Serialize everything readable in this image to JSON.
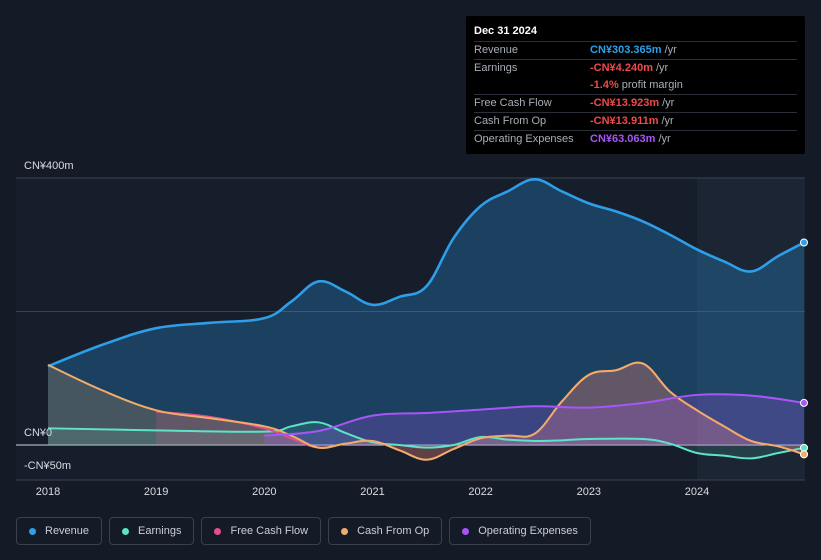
{
  "tooltip": {
    "date": "Dec 31 2024",
    "rows": [
      {
        "label": "Revenue",
        "value": "CN¥303.365m",
        "unit": "/yr",
        "color": "#2e9ee8"
      },
      {
        "label": "Earnings",
        "value": "-CN¥4.240m",
        "unit": "/yr",
        "color": "#f0494b"
      },
      {
        "label": "",
        "value": "-1.4%",
        "unit": "profit margin",
        "color": "#f0494b"
      },
      {
        "label": "Free Cash Flow",
        "value": "-CN¥13.923m",
        "unit": "/yr",
        "color": "#f0494b"
      },
      {
        "label": "Cash From Op",
        "value": "-CN¥13.911m",
        "unit": "/yr",
        "color": "#f0494b"
      },
      {
        "label": "Operating Expenses",
        "value": "CN¥63.063m",
        "unit": "/yr",
        "color": "#a855f7"
      }
    ]
  },
  "chart_data": {
    "type": "area",
    "title": "",
    "y_unit": "CN¥m",
    "ylim": [
      -50,
      400
    ],
    "y_tick_labels": {
      "top": "CN¥400m",
      "zero": "CN¥0",
      "bottom": "-CN¥50m"
    },
    "x_ticks": [
      2018,
      2019,
      2020,
      2021,
      2022,
      2023,
      2024
    ],
    "x_tick_labels": [
      "2018",
      "2019",
      "2020",
      "2021",
      "2022",
      "2023",
      "2024"
    ],
    "forecast_shade_from": 2024.0,
    "series": [
      {
        "name": "Revenue",
        "color": "#2e9ee8",
        "points": [
          [
            2018.0,
            118
          ],
          [
            2018.5,
            150
          ],
          [
            2019.0,
            175
          ],
          [
            2019.5,
            183
          ],
          [
            2020.0,
            190
          ],
          [
            2020.25,
            215
          ],
          [
            2020.5,
            245
          ],
          [
            2020.75,
            230
          ],
          [
            2021.0,
            210
          ],
          [
            2021.25,
            222
          ],
          [
            2021.5,
            238
          ],
          [
            2021.75,
            310
          ],
          [
            2022.0,
            358
          ],
          [
            2022.25,
            380
          ],
          [
            2022.5,
            398
          ],
          [
            2022.75,
            380
          ],
          [
            2023.0,
            362
          ],
          [
            2023.25,
            350
          ],
          [
            2023.5,
            335
          ],
          [
            2023.75,
            315
          ],
          [
            2024.0,
            293
          ],
          [
            2024.25,
            275
          ],
          [
            2024.5,
            260
          ],
          [
            2024.75,
            283
          ],
          [
            2024.99,
            303.365
          ]
        ]
      },
      {
        "name": "Earnings",
        "color": "#5ee3c8",
        "points": [
          [
            2018.0,
            25
          ],
          [
            2019.0,
            22
          ],
          [
            2020.0,
            20
          ],
          [
            2020.25,
            28
          ],
          [
            2020.5,
            34
          ],
          [
            2020.75,
            18
          ],
          [
            2021.0,
            4
          ],
          [
            2021.25,
            0
          ],
          [
            2021.5,
            -4
          ],
          [
            2021.75,
            0
          ],
          [
            2022.0,
            12
          ],
          [
            2022.25,
            8
          ],
          [
            2022.5,
            6
          ],
          [
            2022.75,
            7
          ],
          [
            2023.0,
            9
          ],
          [
            2023.5,
            9
          ],
          [
            2023.75,
            2
          ],
          [
            2024.0,
            -12
          ],
          [
            2024.25,
            -16
          ],
          [
            2024.5,
            -20
          ],
          [
            2024.75,
            -12
          ],
          [
            2024.99,
            -4.24
          ]
        ]
      },
      {
        "name": "Free Cash Flow",
        "color": "#e0508a",
        "points": [
          [
            2019.0,
            50
          ],
          [
            2019.5,
            42
          ],
          [
            2020.0,
            25
          ],
          [
            2020.25,
            10
          ],
          [
            2020.5,
            -4
          ],
          [
            2020.75,
            2
          ],
          [
            2021.0,
            6
          ],
          [
            2021.25,
            -8
          ],
          [
            2021.5,
            -22
          ],
          [
            2021.75,
            -6
          ],
          [
            2022.0,
            10
          ],
          [
            2022.25,
            14
          ],
          [
            2022.5,
            17
          ],
          [
            2022.75,
            65
          ],
          [
            2023.0,
            105
          ],
          [
            2023.25,
            112
          ],
          [
            2023.5,
            122
          ],
          [
            2023.75,
            80
          ],
          [
            2024.0,
            52
          ],
          [
            2024.25,
            28
          ],
          [
            2024.5,
            6
          ],
          [
            2024.75,
            -2
          ],
          [
            2024.99,
            -13.923
          ]
        ]
      },
      {
        "name": "Cash From Op",
        "color": "#f0ad6a",
        "points": [
          [
            2018.0,
            120
          ],
          [
            2018.5,
            82
          ],
          [
            2019.0,
            52
          ],
          [
            2019.5,
            40
          ],
          [
            2020.0,
            28
          ],
          [
            2020.25,
            14
          ],
          [
            2020.5,
            -4
          ],
          [
            2020.75,
            2
          ],
          [
            2021.0,
            6
          ],
          [
            2021.25,
            -8
          ],
          [
            2021.5,
            -22
          ],
          [
            2021.75,
            -6
          ],
          [
            2022.0,
            10
          ],
          [
            2022.25,
            14
          ],
          [
            2022.5,
            17
          ],
          [
            2022.75,
            65
          ],
          [
            2023.0,
            105
          ],
          [
            2023.25,
            112
          ],
          [
            2023.5,
            122
          ],
          [
            2023.75,
            80
          ],
          [
            2024.0,
            52
          ],
          [
            2024.25,
            28
          ],
          [
            2024.5,
            6
          ],
          [
            2024.75,
            -2
          ],
          [
            2024.99,
            -13.911
          ]
        ]
      },
      {
        "name": "Operating Expenses",
        "color": "#a855f7",
        "points": [
          [
            2020.0,
            14
          ],
          [
            2020.5,
            21
          ],
          [
            2021.0,
            44
          ],
          [
            2021.5,
            48
          ],
          [
            2022.0,
            53
          ],
          [
            2022.5,
            58
          ],
          [
            2023.0,
            56
          ],
          [
            2023.5,
            63
          ],
          [
            2024.0,
            75
          ],
          [
            2024.5,
            74
          ],
          [
            2024.99,
            63.063
          ]
        ]
      }
    ]
  },
  "legend": [
    {
      "label": "Revenue",
      "color": "#2e9ee8"
    },
    {
      "label": "Earnings",
      "color": "#5ee3c8"
    },
    {
      "label": "Free Cash Flow",
      "color": "#e0508a"
    },
    {
      "label": "Cash From Op",
      "color": "#f0ad6a"
    },
    {
      "label": "Operating Expenses",
      "color": "#a855f7"
    }
  ]
}
